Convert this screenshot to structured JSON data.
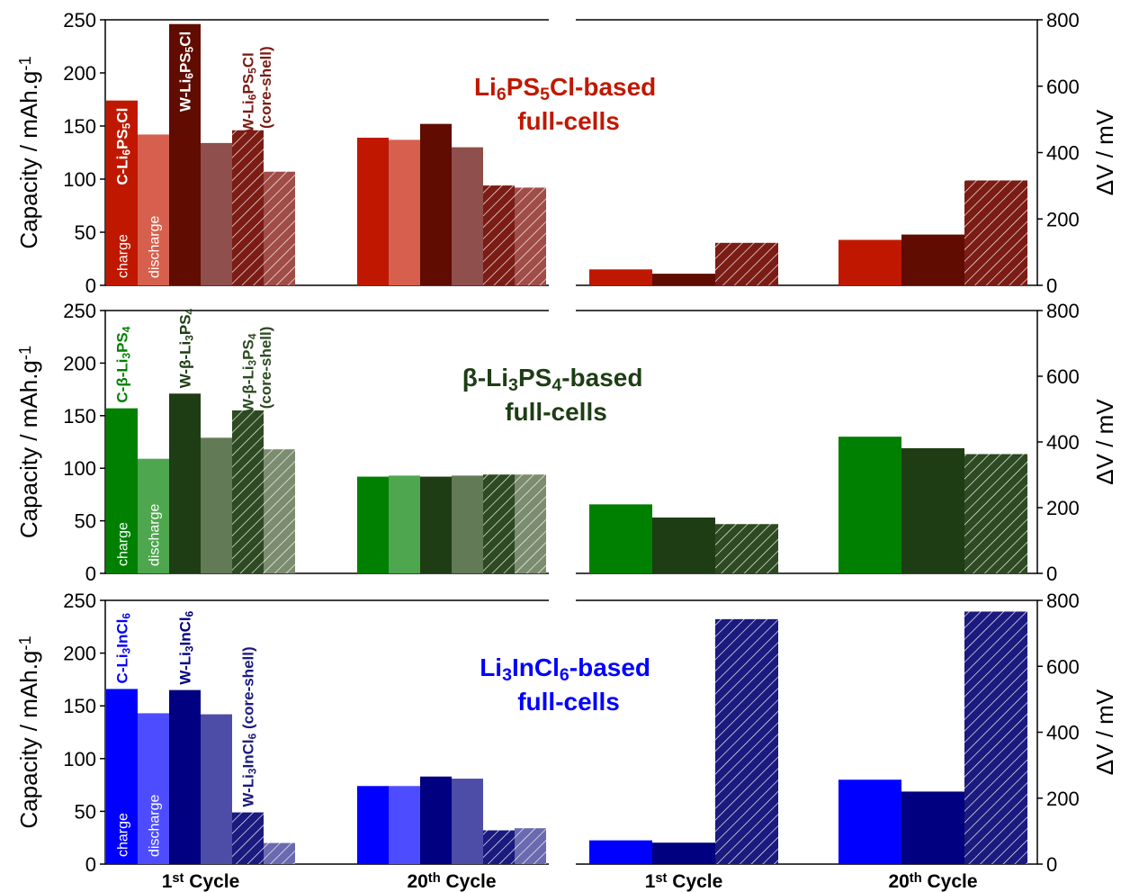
{
  "chart_data": [
    {
      "type": "bar",
      "title": "Li6PS5Cl-based full-cells",
      "title_color": "#c01800",
      "ylabel": "Capacity / mAh.g-1",
      "y2label": "ΔV / mV",
      "ylim": [
        0,
        250
      ],
      "yticks": [
        0,
        50,
        100,
        150,
        200,
        250
      ],
      "y2lim": [
        0,
        800
      ],
      "y2ticks": [
        0,
        200,
        400,
        600,
        800
      ],
      "step_labels": [
        "charge",
        "discharge"
      ],
      "series": [
        {
          "name": "C-Li6PS5Cl",
          "colors": [
            "#c01800",
            "#d6604d"
          ],
          "hatch": false,
          "label_inside": true,
          "charge": [
            174,
            139
          ],
          "discharge": [
            142,
            137
          ],
          "dv": [
            48,
            137
          ]
        },
        {
          "name": "W-Li6PS5Cl",
          "colors": [
            "#600c00",
            "#8f4f4c"
          ],
          "hatch": false,
          "label_inside": true,
          "charge": [
            246,
            152
          ],
          "discharge": [
            134,
            130
          ],
          "dv": [
            35,
            153
          ]
        },
        {
          "name": "W-Li6PS5Cl (core-shell)",
          "colors": [
            "#7b1c15",
            "#a04c47"
          ],
          "hatch": true,
          "label_inside": false,
          "charge": [
            146,
            94
          ],
          "discharge": [
            107,
            92
          ],
          "dv": [
            128,
            316
          ]
        }
      ]
    },
    {
      "type": "bar",
      "title": "β-Li3PS4-based full-cells",
      "title_color": "#1e3d14",
      "ylabel": "Capacity / mAh.g-1",
      "y2label": "ΔV / mV",
      "ylim": [
        0,
        250
      ],
      "yticks": [
        0,
        50,
        100,
        150,
        200,
        250
      ],
      "y2lim": [
        0,
        800
      ],
      "y2ticks": [
        0,
        200,
        400,
        600,
        800
      ],
      "step_labels": [
        "charge",
        "discharge"
      ],
      "series": [
        {
          "name": "C-β-Li3PS4",
          "colors": [
            "#008000",
            "#4ea64e"
          ],
          "hatch": false,
          "label_inside": false,
          "charge": [
            157,
            92
          ],
          "discharge": [
            109,
            93
          ],
          "dv": [
            210,
            416
          ]
        },
        {
          "name": "W-β-Li3PS4",
          "colors": [
            "#1e3d14",
            "#627a56"
          ],
          "hatch": false,
          "label_inside": false,
          "charge": [
            171,
            92
          ],
          "discharge": [
            129,
            93
          ],
          "dv": [
            170,
            381
          ]
        },
        {
          "name": "W-β-Li3PS4 (core-shell)",
          "colors": [
            "#2d4a22",
            "#7b8c6f"
          ],
          "hatch": true,
          "label_inside": false,
          "charge": [
            155,
            94
          ],
          "discharge": [
            118,
            94
          ],
          "dv": [
            150,
            363
          ]
        }
      ]
    },
    {
      "type": "bar",
      "title": "Li3InCl6-based full-cells",
      "title_color": "#0000ff",
      "ylabel": "Capacity / mAh.g-1",
      "y2label": "ΔV / mV",
      "ylim": [
        0,
        250
      ],
      "yticks": [
        0,
        50,
        100,
        150,
        200,
        250
      ],
      "y2lim": [
        0,
        800
      ],
      "y2ticks": [
        0,
        200,
        400,
        600,
        800
      ],
      "step_labels": [
        "charge",
        "discharge"
      ],
      "categories": [
        "1st Cycle",
        "20th Cycle"
      ],
      "series": [
        {
          "name": "C-Li3InCl6",
          "colors": [
            "#0000ff",
            "#4d4dff"
          ],
          "hatch": false,
          "label_inside": false,
          "charge": [
            166,
            74
          ],
          "discharge": [
            143,
            74
          ],
          "dv": [
            72,
            256
          ]
        },
        {
          "name": "W-Li3InCl6",
          "colors": [
            "#000080",
            "#4d4da8"
          ],
          "hatch": false,
          "label_inside": false,
          "charge": [
            165,
            83
          ],
          "discharge": [
            142,
            81
          ],
          "dv": [
            65,
            220
          ]
        },
        {
          "name": "W-Li3InCl6 (core-shell)",
          "colors": [
            "#1a1a7f",
            "#6a6ab0"
          ],
          "hatch": true,
          "label_inside": false,
          "charge": [
            49,
            32
          ],
          "discharge": [
            20,
            34
          ],
          "dv": [
            743,
            766
          ]
        }
      ]
    }
  ]
}
